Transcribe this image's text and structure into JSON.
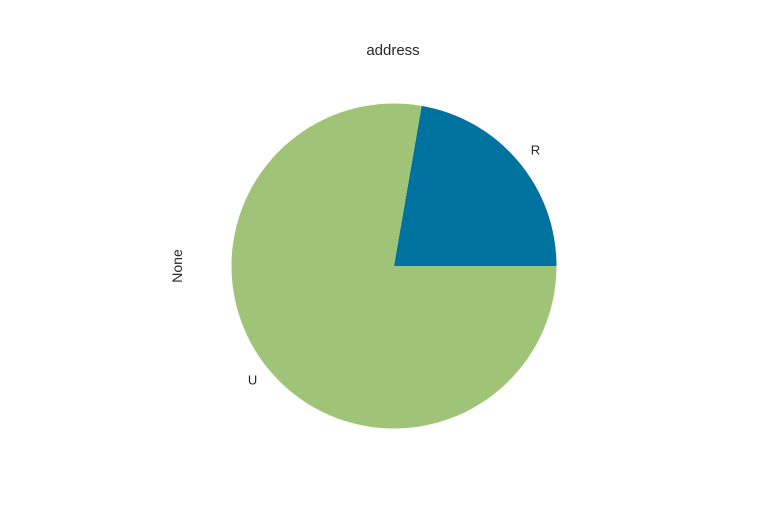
{
  "chart_data": {
    "type": "pie",
    "title": "address",
    "ylabel": "None",
    "labels": [
      "R",
      "U"
    ],
    "values": [
      0.2228,
      0.7772
    ],
    "colors": [
      "#0072a0",
      "#a0c477"
    ],
    "start_angle_deg": 0,
    "direction": "counterclockwise"
  }
}
